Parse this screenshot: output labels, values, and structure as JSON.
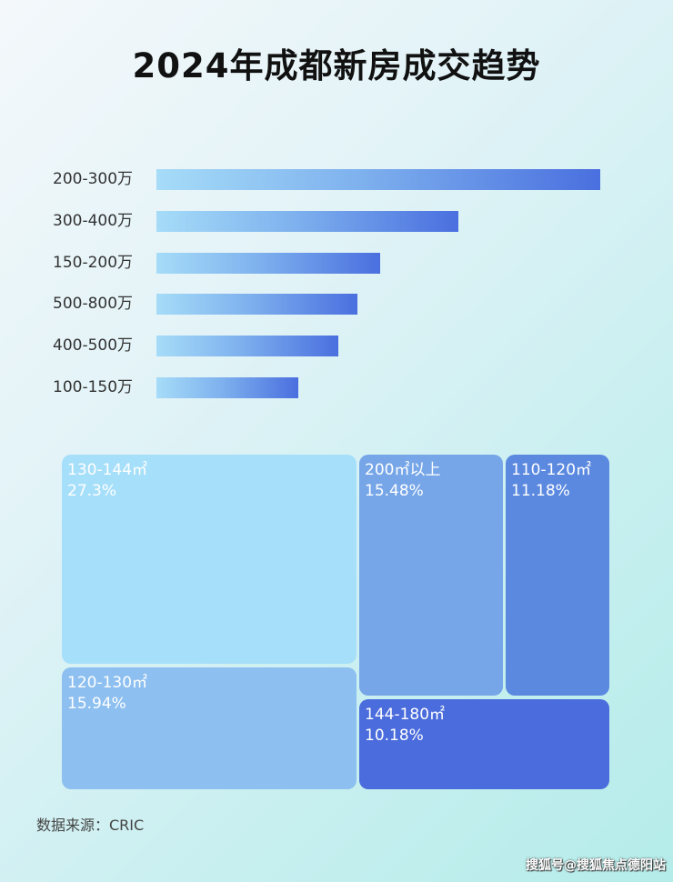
{
  "chart_data": [
    {
      "type": "bar",
      "orientation": "horizontal",
      "title": "2024年成都新房成交趋势",
      "categories": [
        "200-300万",
        "300-400万",
        "150-200万",
        "500-800万",
        "400-500万",
        "100-150万"
      ],
      "values": [
        100,
        68,
        50.4,
        45.3,
        41,
        32
      ],
      "value_unit": "relative (no axis printed)",
      "grid": false,
      "colors": {
        "start": "#a6dcf8",
        "end": "#4a6fdf"
      }
    },
    {
      "type": "treemap",
      "items": [
        {
          "label": "130-144㎡",
          "value": "27.3%",
          "color": "#a6dffa"
        },
        {
          "label": "120-130㎡",
          "value": "15.94%",
          "color": "#8dbff0"
        },
        {
          "label": "200㎡以上",
          "value": "15.48%",
          "color": "#76a6e8"
        },
        {
          "label": "110-120㎡",
          "value": "11.18%",
          "color": "#5b89e0"
        },
        {
          "label": "144-180㎡",
          "value": "10.18%",
          "color": "#4a6cdc"
        }
      ]
    }
  ],
  "source": "数据来源：CRIC",
  "watermark": "搜狐号@搜狐焦点德阳站"
}
